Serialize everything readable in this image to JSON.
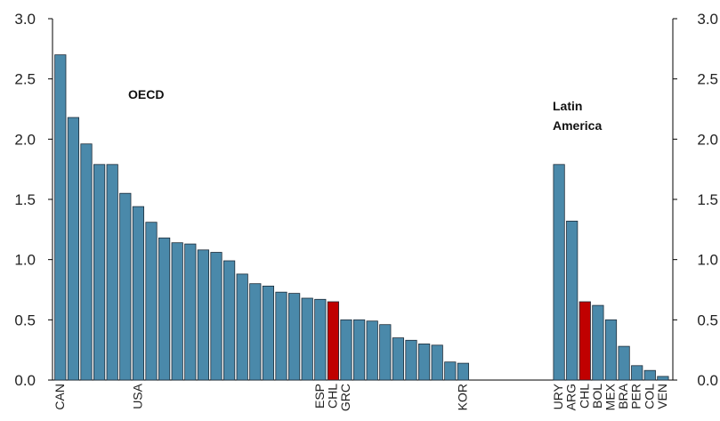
{
  "chart_data": {
    "type": "bar",
    "ylim": [
      0,
      3.0
    ],
    "yticks": [
      "0.0",
      "0.5",
      "1.0",
      "1.5",
      "2.0",
      "2.5",
      "3.0"
    ],
    "ytick_values": [
      0,
      0.5,
      1.0,
      1.5,
      2.0,
      2.5,
      3.0
    ],
    "grid": false,
    "colors": {
      "default": "#4a89aa",
      "highlight": "#c00000",
      "outline": "#1f2d3a"
    },
    "annotations": {
      "oecd": "OECD",
      "latam_line1": "Latin",
      "latam_line2": "America"
    },
    "groups": [
      {
        "name": "OECD",
        "bars": [
          {
            "label": "CAN",
            "value": 2.7
          },
          {
            "label": "",
            "value": 2.18
          },
          {
            "label": "",
            "value": 1.96
          },
          {
            "label": "",
            "value": 1.79
          },
          {
            "label": "",
            "value": 1.79
          },
          {
            "label": "",
            "value": 1.55
          },
          {
            "label": "USA",
            "value": 1.44
          },
          {
            "label": "",
            "value": 1.31
          },
          {
            "label": "",
            "value": 1.18
          },
          {
            "label": "",
            "value": 1.14
          },
          {
            "label": "",
            "value": 1.13
          },
          {
            "label": "",
            "value": 1.08
          },
          {
            "label": "",
            "value": 1.06
          },
          {
            "label": "",
            "value": 0.99
          },
          {
            "label": "",
            "value": 0.88
          },
          {
            "label": "",
            "value": 0.8
          },
          {
            "label": "",
            "value": 0.78
          },
          {
            "label": "",
            "value": 0.73
          },
          {
            "label": "",
            "value": 0.72
          },
          {
            "label": "",
            "value": 0.68
          },
          {
            "label": "ESP",
            "value": 0.67
          },
          {
            "label": "CHL",
            "value": 0.65,
            "highlight": true
          },
          {
            "label": "GRC",
            "value": 0.5
          },
          {
            "label": "",
            "value": 0.5
          },
          {
            "label": "",
            "value": 0.49
          },
          {
            "label": "",
            "value": 0.46
          },
          {
            "label": "",
            "value": 0.35
          },
          {
            "label": "",
            "value": 0.33
          },
          {
            "label": "",
            "value": 0.3
          },
          {
            "label": "",
            "value": 0.29
          },
          {
            "label": "",
            "value": 0.15
          },
          {
            "label": "KOR",
            "value": 0.14
          }
        ]
      },
      {
        "name": "Latin America",
        "bars": [
          {
            "label": "URY",
            "value": 1.79
          },
          {
            "label": "ARG",
            "value": 1.32
          },
          {
            "label": "CHL",
            "value": 0.65,
            "highlight": true
          },
          {
            "label": "BOL",
            "value": 0.62
          },
          {
            "label": "MEX",
            "value": 0.5
          },
          {
            "label": "BRA",
            "value": 0.28
          },
          {
            "label": "PER",
            "value": 0.12
          },
          {
            "label": "COL",
            "value": 0.08
          },
          {
            "label": "VEN",
            "value": 0.03
          }
        ]
      }
    ]
  }
}
